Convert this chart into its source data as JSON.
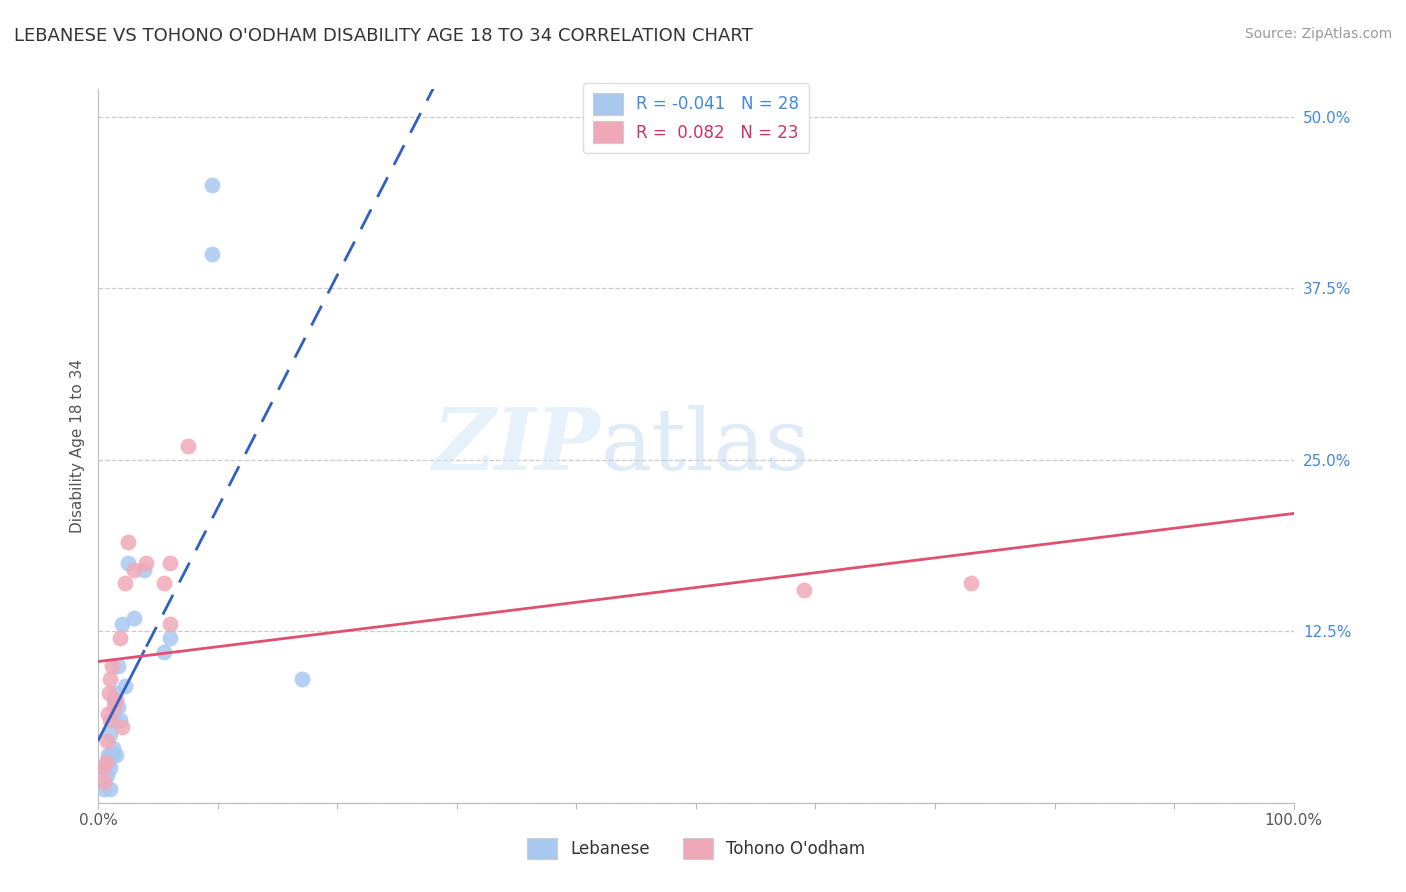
{
  "title": "LEBANESE VS TOHONO O'ODHAM DISABILITY AGE 18 TO 34 CORRELATION CHART",
  "source": "Source: ZipAtlas.com",
  "ylabel": "Disability Age 18 to 34",
  "xlim": [
    0.0,
    1.0
  ],
  "ylim": [
    0.0,
    0.52
  ],
  "ytick_positions": [
    0.0,
    0.125,
    0.25,
    0.375,
    0.5
  ],
  "ytick_labels": [
    "",
    "12.5%",
    "25.0%",
    "37.5%",
    "50.0%"
  ],
  "legend_R_blue": "R = -0.041",
  "legend_N_blue": "N = 28",
  "legend_R_pink": "R =  0.082",
  "legend_N_pink": "N = 23",
  "blue_color": "#a8c8f0",
  "pink_color": "#f0a8b8",
  "trend_blue_solid_color": "#3060c0",
  "trend_blue_dash_color": "#3060c0",
  "trend_pink_color": "#e05070",
  "watermark_zip": "ZIP",
  "watermark_atlas": "atlas",
  "blue_x": [
    0.005,
    0.005,
    0.007,
    0.008,
    0.008,
    0.01,
    0.01,
    0.01,
    0.01,
    0.012,
    0.012,
    0.013,
    0.013,
    0.014,
    0.015,
    0.016,
    0.016,
    0.018,
    0.02,
    0.022,
    0.025,
    0.03,
    0.038,
    0.055,
    0.06,
    0.095,
    0.095,
    0.17
  ],
  "blue_y": [
    0.01,
    0.025,
    0.02,
    0.03,
    0.035,
    0.01,
    0.025,
    0.035,
    0.05,
    0.035,
    0.04,
    0.06,
    0.075,
    0.08,
    0.035,
    0.07,
    0.1,
    0.06,
    0.13,
    0.085,
    0.175,
    0.135,
    0.17,
    0.11,
    0.12,
    0.45,
    0.4,
    0.09
  ],
  "pink_x": [
    0.004,
    0.005,
    0.006,
    0.007,
    0.008,
    0.009,
    0.01,
    0.01,
    0.011,
    0.013,
    0.015,
    0.018,
    0.02,
    0.022,
    0.025,
    0.03,
    0.04,
    0.055,
    0.06,
    0.06,
    0.075,
    0.59,
    0.73
  ],
  "pink_y": [
    0.025,
    0.015,
    0.03,
    0.045,
    0.065,
    0.08,
    0.06,
    0.09,
    0.1,
    0.07,
    0.075,
    0.12,
    0.055,
    0.16,
    0.19,
    0.17,
    0.175,
    0.16,
    0.175,
    0.13,
    0.26,
    0.155,
    0.16
  ],
  "blue_trend_start_x": 0.0,
  "blue_trend_end_x": 1.0,
  "blue_solid_to": 0.04,
  "pink_trend_start_x": 0.0,
  "pink_trend_end_x": 1.0
}
